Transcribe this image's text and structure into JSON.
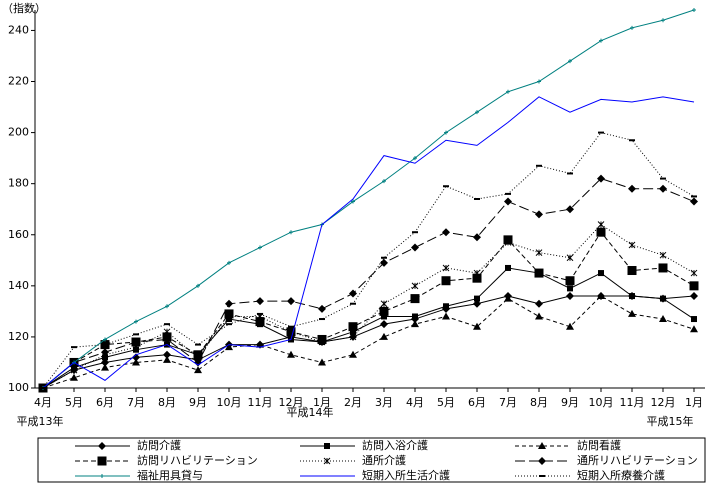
{
  "chart_data": {
    "type": "line",
    "y_label": "（指数）",
    "categories": [
      "4月",
      "5月",
      "6月",
      "7月",
      "8月",
      "9月",
      "10月",
      "11月",
      "12月",
      "1月",
      "2月",
      "3月",
      "4月",
      "5月",
      "6月",
      "7月",
      "8月",
      "9月",
      "10月",
      "11月",
      "12月",
      "1月"
    ],
    "annotations": [
      "平成13年",
      "平成14年",
      "平成15年"
    ],
    "ylim": [
      100,
      248
    ],
    "yticks": [
      100,
      120,
      140,
      160,
      180,
      200,
      220,
      240
    ],
    "series": [
      {
        "name": "訪問介護",
        "color": "#000000",
        "dash": "none",
        "marker": "diamond",
        "values": [
          100,
          107,
          110,
          112,
          113,
          111,
          117,
          117,
          120,
          118,
          120,
          125,
          127,
          131,
          133,
          136,
          133,
          136,
          136,
          136,
          135,
          136
        ]
      },
      {
        "name": "訪問入浴介護",
        "color": "#000000",
        "dash": "none",
        "marker": "square",
        "values": [
          100,
          108,
          112,
          115,
          117,
          113,
          127,
          125,
          119,
          118,
          122,
          128,
          128,
          132,
          135,
          147,
          145,
          139,
          145,
          136,
          135,
          127
        ]
      },
      {
        "name": "訪問看護",
        "color": "#000000",
        "dash": "4,3",
        "marker": "triangle",
        "values": [
          100,
          104,
          108,
          110,
          111,
          107,
          116,
          117,
          113,
          110,
          113,
          120,
          125,
          128,
          124,
          135,
          128,
          124,
          136,
          129,
          127,
          123
        ]
      },
      {
        "name": "訪問リハビリテーション",
        "color": "#000000",
        "dash": "5,3",
        "marker": "bigsquare",
        "values": [
          100,
          110,
          117,
          118,
          120,
          113,
          129,
          126,
          122,
          119,
          124,
          130,
          135,
          142,
          143,
          158,
          145,
          142,
          161,
          146,
          147,
          140
        ]
      },
      {
        "name": "通所介護",
        "color": "#000000",
        "dash": "1,2",
        "marker": "asterisk",
        "values": [
          100,
          107,
          113,
          116,
          122,
          112,
          128,
          128,
          122,
          118,
          120,
          133,
          140,
          147,
          145,
          157,
          153,
          151,
          164,
          156,
          152,
          145
        ]
      },
      {
        "name": "通所リハビリテーション",
        "color": "#000000",
        "dash": "10,4",
        "marker": "diamond",
        "values": [
          100,
          110,
          114,
          118,
          119,
          110,
          133,
          134,
          134,
          131,
          137,
          149,
          155,
          161,
          159,
          173,
          168,
          170,
          182,
          178,
          178,
          173
        ]
      },
      {
        "name": "福祉用具貸与",
        "color": "#008080",
        "dash": "none",
        "marker": "plus",
        "values": [
          100,
          110,
          119,
          126,
          132,
          140,
          149,
          155,
          161,
          164,
          173,
          181,
          190,
          200,
          208,
          216,
          220,
          228,
          236,
          241,
          244,
          248
        ]
      },
      {
        "name": "短期入所生活介護",
        "color": "#0000ff",
        "dash": "none",
        "marker": "none",
        "values": [
          100,
          110,
          103,
          113,
          117,
          109,
          117,
          116,
          119,
          164,
          174,
          191,
          188,
          197,
          195,
          204,
          214,
          208,
          213,
          212,
          214,
          212
        ]
      },
      {
        "name": "短期入所療養介護",
        "color": "#000000",
        "dash": "1,2",
        "marker": "dash",
        "values": [
          100,
          116,
          117,
          121,
          125,
          117,
          125,
          129,
          124,
          127,
          133,
          151,
          161,
          179,
          174,
          176,
          187,
          184,
          200,
          197,
          182,
          175
        ]
      }
    ]
  }
}
